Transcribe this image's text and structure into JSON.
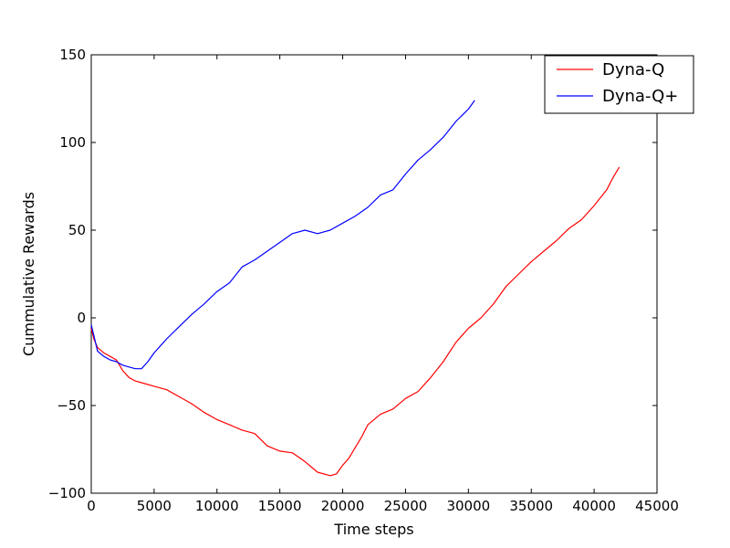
{
  "chart_data": {
    "type": "line",
    "title": "",
    "xlabel": "Time steps",
    "ylabel": "Cummulative Rewards",
    "xlim": [
      0,
      45000
    ],
    "ylim": [
      -100,
      150
    ],
    "x_ticks": [
      0,
      5000,
      10000,
      15000,
      20000,
      25000,
      30000,
      35000,
      40000,
      45000
    ],
    "y_ticks": [
      -100,
      -50,
      0,
      50,
      100,
      150
    ],
    "x_tick_labels": [
      "0",
      "5000",
      "10000",
      "15000",
      "20000",
      "25000",
      "30000",
      "35000",
      "40000",
      "45000"
    ],
    "y_tick_labels": [
      "−100",
      "−50",
      "0",
      "50",
      "100",
      "150"
    ],
    "grid": false,
    "legend": {
      "position": "top-right"
    },
    "series": [
      {
        "name": "Dyna-Q",
        "color": "#ff0000",
        "points": [
          [
            0,
            -6
          ],
          [
            200,
            -12
          ],
          [
            500,
            -17
          ],
          [
            1000,
            -20
          ],
          [
            1500,
            -22
          ],
          [
            2000,
            -24
          ],
          [
            2500,
            -30
          ],
          [
            3000,
            -34
          ],
          [
            3500,
            -36
          ],
          [
            4000,
            -37
          ],
          [
            5000,
            -39
          ],
          [
            6000,
            -41
          ],
          [
            7000,
            -45
          ],
          [
            8000,
            -49
          ],
          [
            9000,
            -54
          ],
          [
            10000,
            -58
          ],
          [
            11000,
            -61
          ],
          [
            12000,
            -64
          ],
          [
            13000,
            -66
          ],
          [
            14000,
            -73
          ],
          [
            15000,
            -76
          ],
          [
            16000,
            -77
          ],
          [
            17000,
            -82
          ],
          [
            18000,
            -88
          ],
          [
            19000,
            -90
          ],
          [
            19500,
            -89
          ],
          [
            20000,
            -84
          ],
          [
            20500,
            -80
          ],
          [
            21000,
            -74
          ],
          [
            21500,
            -68
          ],
          [
            22000,
            -61
          ],
          [
            23000,
            -55
          ],
          [
            24000,
            -52
          ],
          [
            25000,
            -46
          ],
          [
            26000,
            -42
          ],
          [
            27000,
            -34
          ],
          [
            28000,
            -25
          ],
          [
            29000,
            -14
          ],
          [
            30000,
            -6
          ],
          [
            31000,
            0
          ],
          [
            32000,
            8
          ],
          [
            33000,
            18
          ],
          [
            34000,
            25
          ],
          [
            35000,
            32
          ],
          [
            36000,
            38
          ],
          [
            37000,
            44
          ],
          [
            38000,
            51
          ],
          [
            39000,
            56
          ],
          [
            40000,
            64
          ],
          [
            41000,
            73
          ],
          [
            41500,
            80
          ],
          [
            42000,
            86
          ]
        ]
      },
      {
        "name": "Dyna-Q+",
        "color": "#0000ff",
        "points": [
          [
            0,
            -4
          ],
          [
            200,
            -10
          ],
          [
            500,
            -19
          ],
          [
            1000,
            -22
          ],
          [
            1500,
            -24
          ],
          [
            2000,
            -25
          ],
          [
            2500,
            -27
          ],
          [
            3000,
            -28
          ],
          [
            3500,
            -29
          ],
          [
            4000,
            -29
          ],
          [
            4500,
            -25
          ],
          [
            5000,
            -20
          ],
          [
            5500,
            -16
          ],
          [
            6000,
            -12
          ],
          [
            7000,
            -5
          ],
          [
            8000,
            2
          ],
          [
            9000,
            8
          ],
          [
            10000,
            15
          ],
          [
            11000,
            20
          ],
          [
            12000,
            29
          ],
          [
            13000,
            33
          ],
          [
            14000,
            38
          ],
          [
            15000,
            43
          ],
          [
            16000,
            48
          ],
          [
            17000,
            50
          ],
          [
            18000,
            48
          ],
          [
            19000,
            50
          ],
          [
            20000,
            54
          ],
          [
            21000,
            58
          ],
          [
            22000,
            63
          ],
          [
            23000,
            70
          ],
          [
            24000,
            73
          ],
          [
            25000,
            82
          ],
          [
            26000,
            90
          ],
          [
            27000,
            96
          ],
          [
            28000,
            103
          ],
          [
            29000,
            112
          ],
          [
            30000,
            119
          ],
          [
            30500,
            124
          ]
        ]
      }
    ]
  }
}
